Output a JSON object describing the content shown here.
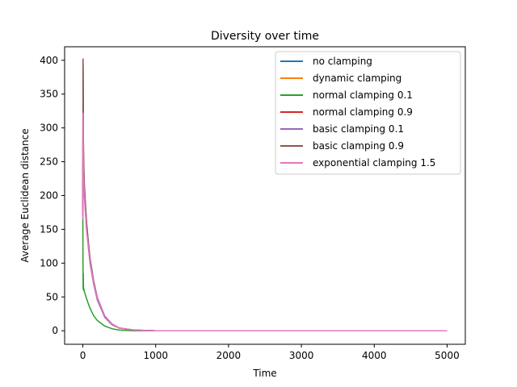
{
  "chart_data": {
    "type": "line",
    "title": "Diversity over time",
    "xlabel": "Time",
    "ylabel": "Average Euclidean distance",
    "xlim": [
      -250,
      5250
    ],
    "ylim": [
      -20,
      420
    ],
    "xticks": [
      0,
      1000,
      2000,
      3000,
      4000,
      5000
    ],
    "xtick_labels": [
      "0",
      "1000",
      "2000",
      "3000",
      "4000",
      "5000"
    ],
    "yticks": [
      0,
      50,
      100,
      150,
      200,
      250,
      300,
      350,
      400
    ],
    "ytick_labels": [
      "0",
      "50",
      "100",
      "150",
      "200",
      "250",
      "300",
      "350",
      "400"
    ],
    "grid": false,
    "legend_position": "upper right",
    "series": [
      {
        "name": "no clamping",
        "color": "#1f77b4",
        "x": [
          0,
          3,
          6,
          10,
          20,
          30,
          50,
          75,
          100,
          150,
          200,
          300,
          400,
          500,
          700,
          1000,
          2000,
          3000,
          4000,
          5000
        ],
        "y": [
          180,
          395,
          300,
          250,
          215,
          195,
          160,
          130,
          105,
          72,
          48,
          22,
          10,
          4,
          1,
          0,
          0,
          0,
          0,
          0
        ]
      },
      {
        "name": "dynamic clamping",
        "color": "#ff7f0e",
        "x": [
          0,
          3,
          6,
          10,
          20,
          30,
          50,
          75,
          100,
          150,
          200,
          300,
          400,
          500,
          700,
          1000,
          2000,
          3000,
          4000,
          5000
        ],
        "y": [
          175,
          390,
          295,
          248,
          212,
          192,
          158,
          128,
          103,
          70,
          47,
          21,
          9,
          4,
          1,
          0,
          0,
          0,
          0,
          0
        ]
      },
      {
        "name": "normal clamping 0.1",
        "color": "#2ca02c",
        "x": [
          0,
          2,
          4,
          6,
          10,
          15,
          20,
          30,
          50,
          75,
          100,
          150,
          200,
          300,
          400,
          500,
          700,
          1000,
          2000,
          3000,
          4000,
          5000
        ],
        "y": [
          180,
          100,
          62,
          85,
          60,
          62,
          58,
          55,
          48,
          40,
          33,
          22,
          15,
          7,
          3,
          1,
          0,
          0,
          0,
          0,
          0,
          0
        ]
      },
      {
        "name": "normal clamping 0.9",
        "color": "#d62728",
        "x": [
          0,
          3,
          6,
          10,
          20,
          30,
          50,
          75,
          100,
          150,
          200,
          300,
          400,
          500,
          700,
          1000,
          2000,
          3000,
          4000,
          5000
        ],
        "y": [
          170,
          385,
          290,
          245,
          210,
          190,
          155,
          126,
          101,
          69,
          46,
          21,
          9,
          4,
          1,
          0,
          0,
          0,
          0,
          0
        ]
      },
      {
        "name": "basic clamping 0.1",
        "color": "#9467bd",
        "x": [
          0,
          3,
          6,
          10,
          20,
          30,
          50,
          75,
          100,
          150,
          200,
          300,
          400,
          500,
          700,
          1000,
          2000,
          3000,
          4000,
          5000
        ],
        "y": [
          175,
          380,
          290,
          240,
          205,
          185,
          152,
          124,
          99,
          68,
          45,
          20,
          9,
          4,
          1,
          0,
          0,
          0,
          0,
          0
        ]
      },
      {
        "name": "basic clamping 0.9",
        "color": "#8c564b",
        "x": [
          0,
          3,
          6,
          10,
          20,
          30,
          50,
          75,
          100,
          150,
          200,
          300,
          400,
          500,
          700,
          1000,
          2000,
          3000,
          4000,
          5000
        ],
        "y": [
          180,
          402,
          310,
          260,
          220,
          198,
          162,
          132,
          106,
          73,
          49,
          22,
          10,
          4,
          1,
          0,
          0,
          0,
          0,
          0
        ]
      },
      {
        "name": "exponential clamping 1.5",
        "color": "#e377c2",
        "x": [
          0,
          3,
          6,
          10,
          20,
          30,
          50,
          75,
          100,
          150,
          200,
          300,
          400,
          500,
          700,
          1000,
          2000,
          3000,
          4000,
          5000
        ],
        "y": [
          165,
          322,
          260,
          230,
          200,
          182,
          150,
          124,
          100,
          70,
          48,
          22,
          10,
          4,
          1,
          0,
          0,
          0,
          0,
          0
        ]
      }
    ]
  }
}
